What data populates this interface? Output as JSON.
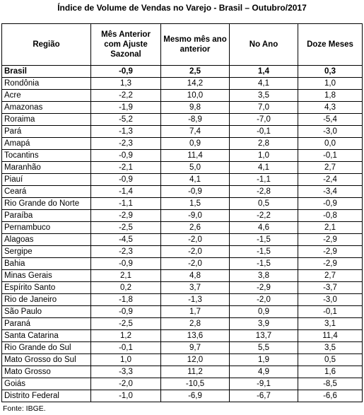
{
  "header": {
    "title": "Índice de Volume de Vendas no Varejo - Brasil – Outubro/2017"
  },
  "table": {
    "columns": [
      "Região",
      "Mês Anterior com Ajuste Sazonal",
      "Mesmo mês ano anterior",
      "No Ano",
      "Doze Meses"
    ],
    "rows": [
      [
        "Brasil",
        "-0,9",
        "2,5",
        "1,4",
        "0,3"
      ],
      [
        "Rondônia",
        "1,3",
        "14,2",
        "4,1",
        "1,0"
      ],
      [
        "Acre",
        "-2,2",
        "10,0",
        "3,5",
        "1,8"
      ],
      [
        "Amazonas",
        "-1,9",
        "9,8",
        "7,0",
        "4,3"
      ],
      [
        "Roraima",
        "-5,2",
        "-8,9",
        "-7,0",
        "-5,4"
      ],
      [
        "Pará",
        "-1,3",
        "7,4",
        "-0,1",
        "-3,0"
      ],
      [
        "Amapá",
        "-2,3",
        "0,9",
        "2,8",
        "0,0"
      ],
      [
        "Tocantins",
        "-0,9",
        "11,4",
        "1,0",
        "-0,1"
      ],
      [
        "Maranhão",
        "-2,1",
        "5,0",
        "4,1",
        "2,7"
      ],
      [
        "Piauí",
        "-0,9",
        "4,1",
        "-1,1",
        "-2,4"
      ],
      [
        "Ceará",
        "-1,4",
        "-0,9",
        "-2,8",
        "-3,4"
      ],
      [
        "Rio Grande do Norte",
        "-1,1",
        "1,5",
        "0,5",
        "-0,9"
      ],
      [
        "Paraíba",
        "-2,9",
        "-9,0",
        "-2,2",
        "-0,8"
      ],
      [
        "Pernambuco",
        "-2,5",
        "2,6",
        "4,6",
        "2,1"
      ],
      [
        "Alagoas",
        "-4,5",
        "-2,0",
        "-1,5",
        "-2,9"
      ],
      [
        "Sergipe",
        "-2,3",
        "-2,0",
        "-1,5",
        "-2,9"
      ],
      [
        "Bahia",
        "-0,9",
        "-2,0",
        "-1,5",
        "-2,9"
      ],
      [
        "Minas Gerais",
        "2,1",
        "4,8",
        "3,8",
        "2,7"
      ],
      [
        "Espírito Santo",
        "0,2",
        "3,7",
        "-2,9",
        "-3,7"
      ],
      [
        "Rio de Janeiro",
        "-1,8",
        "-1,3",
        "-2,0",
        "-3,0"
      ],
      [
        "São Paulo",
        "-0,9",
        "1,7",
        "0,9",
        "-0,1"
      ],
      [
        "Paraná",
        "-2,5",
        "2,8",
        "3,9",
        "3,1"
      ],
      [
        "Santa Catarina",
        "1,2",
        "13,6",
        "13,7",
        "11,4"
      ],
      [
        "Rio Grande do Sul",
        "-0,1",
        "9,7",
        "5,5",
        "3,5"
      ],
      [
        "Mato Grosso do Sul",
        "1,0",
        "12,0",
        "1,9",
        "0,5"
      ],
      [
        "Mato Grosso",
        "-3,3",
        "11,2",
        "4,9",
        "1,6"
      ],
      [
        "Goiás",
        "-2,0",
        "-10,5",
        "-9,1",
        "-8,5"
      ],
      [
        "Distrito Federal",
        "-1,0",
        "-6,9",
        "-6,7",
        "-6,6"
      ]
    ]
  },
  "footer": {
    "source": "Fonte: IBGE."
  }
}
